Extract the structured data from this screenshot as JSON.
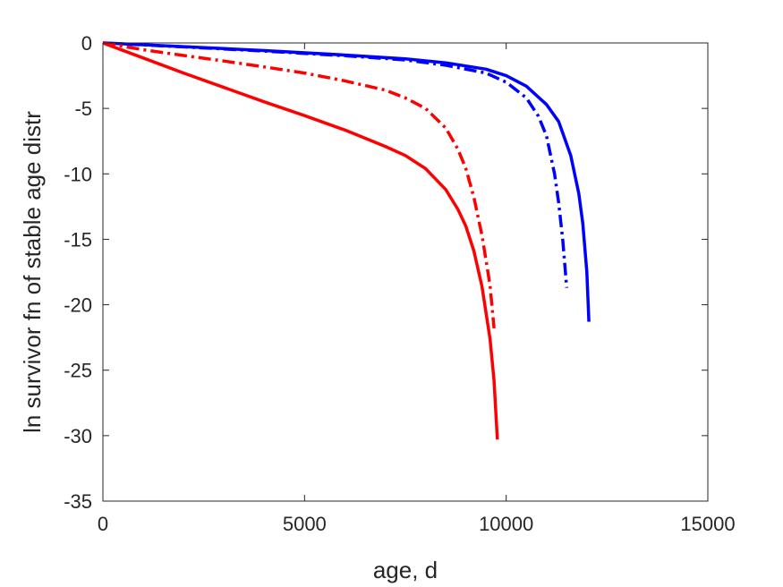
{
  "chart_data": {
    "type": "line",
    "title": "",
    "xlabel": "age, d",
    "ylabel": "ln survivor fn of stable age distr",
    "xlim": [
      0,
      15000
    ],
    "ylim": [
      -35,
      0
    ],
    "xticks": [
      0,
      5000,
      10000,
      15000
    ],
    "yticks": [
      0,
      -5,
      -10,
      -15,
      -20,
      -25,
      -30,
      -35
    ],
    "xtick_labels": [
      "0",
      "5000",
      "10000",
      "15000"
    ],
    "ytick_labels": [
      "0",
      "-5",
      "-10",
      "-15",
      "-20",
      "-25",
      "-30",
      "-35"
    ],
    "grid": false,
    "legend": false,
    "series": [
      {
        "color": "#0000ff",
        "style": "solid",
        "x": [
          0,
          2000,
          4000,
          6000,
          7500,
          8500,
          9500,
          10000,
          10500,
          11000,
          11300,
          11600,
          11800,
          11900,
          12000,
          12050
        ],
        "y": [
          0,
          -0.28,
          -0.58,
          -0.92,
          -1.22,
          -1.52,
          -2.0,
          -2.5,
          -3.3,
          -4.7,
          -6.0,
          -8.6,
          -11.5,
          -13.8,
          -17.5,
          -21.3
        ]
      },
      {
        "color": "#0000ff",
        "style": "dashdot",
        "x": [
          0,
          2000,
          4000,
          6000,
          7500,
          8500,
          9500,
          10000,
          10500,
          10800,
          11000,
          11200,
          11300,
          11400,
          11500
        ],
        "y": [
          0,
          -0.3,
          -0.62,
          -0.98,
          -1.3,
          -1.7,
          -2.3,
          -3.0,
          -4.2,
          -5.6,
          -7.1,
          -10.0,
          -12.2,
          -15.0,
          -18.7
        ]
      },
      {
        "color": "#ff0000",
        "style": "dashdot",
        "x": [
          0,
          1000,
          2000,
          3000,
          4000,
          5000,
          6000,
          7000,
          7500,
          8000,
          8500,
          8800,
          9000,
          9200,
          9400,
          9600,
          9700
        ],
        "y": [
          0,
          -0.52,
          -0.96,
          -1.38,
          -1.83,
          -2.3,
          -2.9,
          -3.6,
          -4.2,
          -5.0,
          -6.5,
          -8.1,
          -9.6,
          -11.8,
          -14.7,
          -18.5,
          -21.8
        ]
      },
      {
        "color": "#ff0000",
        "style": "solid",
        "x": [
          0,
          1000,
          2000,
          3000,
          4000,
          5000,
          6000,
          7000,
          7500,
          8000,
          8500,
          8800,
          9000,
          9200,
          9400,
          9600,
          9700,
          9780
        ],
        "y": [
          0,
          -1.15,
          -2.3,
          -3.4,
          -4.5,
          -5.55,
          -6.65,
          -7.9,
          -8.6,
          -9.6,
          -11.2,
          -12.7,
          -14.0,
          -15.9,
          -18.6,
          -22.6,
          -25.8,
          -30.3
        ]
      }
    ]
  }
}
